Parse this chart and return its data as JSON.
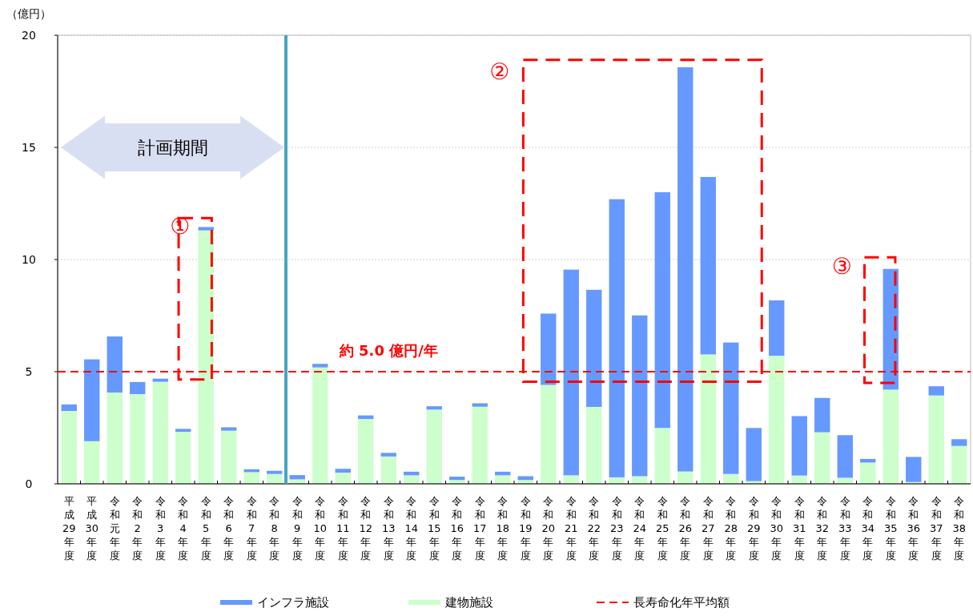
{
  "chart_data": {
    "type": "bar",
    "stacked": true,
    "ylabel": "（億円）",
    "categories": [
      "平成29年度",
      "平成30年度",
      "令和元年度",
      "令和2年度",
      "令和3年度",
      "令和4年度",
      "令和5年度",
      "令和6年度",
      "令和7年度",
      "令和8年度",
      "令和9年度",
      "令和10年度",
      "令和11年度",
      "令和12年度",
      "令和13年度",
      "令和14年度",
      "令和15年度",
      "令和16年度",
      "令和17年度",
      "令和18年度",
      "令和19年度",
      "令和20年度",
      "令和21年度",
      "令和22年度",
      "令和23年度",
      "令和24年度",
      "令和25年度",
      "令和26年度",
      "令和27年度",
      "令和28年度",
      "令和29年度",
      "令和30年度",
      "令和31年度",
      "令和32年度",
      "令和33年度",
      "令和34年度",
      "令和35年度",
      "令和36年度",
      "令和37年度",
      "令和38年度"
    ],
    "series": [
      {
        "name": "建物施設",
        "color": "#ccffcc",
        "values": [
          3.25,
          1.9,
          4.07,
          4.0,
          4.55,
          2.32,
          11.3,
          2.37,
          0.52,
          0.44,
          0.2,
          5.19,
          0.5,
          2.89,
          1.22,
          0.38,
          3.31,
          0.17,
          3.44,
          0.38,
          0.17,
          4.41,
          0.38,
          3.43,
          0.29,
          0.34,
          2.49,
          0.55,
          5.77,
          0.44,
          0.12,
          5.71,
          0.37,
          2.3,
          0.27,
          0.95,
          4.2,
          0.08,
          3.94,
          1.69
        ]
      },
      {
        "name": "インフラ施設",
        "color": "#6699ff",
        "values": [
          0.29,
          3.65,
          2.5,
          0.54,
          0.14,
          0.13,
          0.15,
          0.15,
          0.13,
          0.14,
          0.19,
          0.16,
          0.17,
          0.16,
          0.16,
          0.16,
          0.15,
          0.15,
          0.15,
          0.16,
          0.17,
          3.18,
          9.17,
          5.22,
          12.4,
          7.17,
          10.51,
          18.02,
          7.91,
          5.86,
          2.37,
          2.47,
          2.65,
          1.53,
          1.9,
          0.16,
          5.38,
          1.12,
          0.41,
          0.3
        ]
      }
    ],
    "ylim": [
      0,
      20
    ],
    "yticks": [
      0,
      5,
      10,
      15,
      20
    ],
    "grid": "y",
    "legend": "bottom",
    "ref_lines": [
      {
        "axis": "y",
        "value": 5,
        "label": "長寿命化年平均額",
        "color": "#ff0000",
        "line_style": "dashed"
      },
      {
        "axis": "x",
        "value": "令和8年度",
        "color": "#4ba3c3",
        "line_style": "solid"
      }
    ],
    "annotations": [
      {
        "text": "約 5.0 億円/年",
        "x": "令和13年度",
        "y": 5
      },
      "①",
      "②",
      "③",
      "計画期間"
    ]
  }
}
